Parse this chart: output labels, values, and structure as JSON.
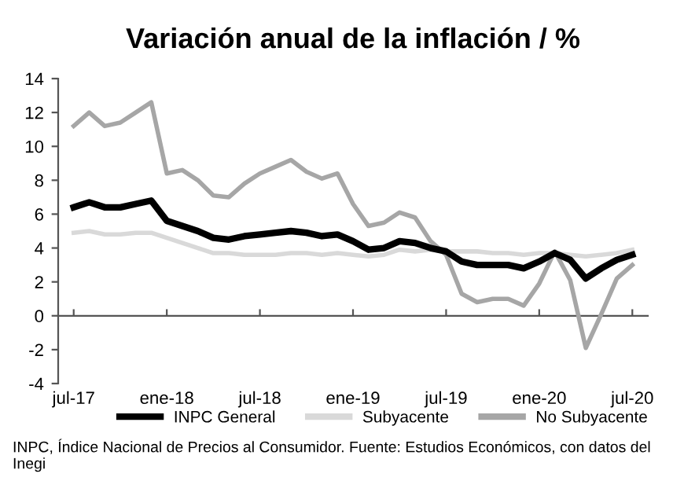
{
  "chart_data": {
    "type": "line",
    "title": "Variación anual de la inflación / %",
    "categories": [
      "jul-17",
      null,
      null,
      null,
      null,
      null,
      "ene-18",
      null,
      null,
      null,
      null,
      null,
      "jul-18",
      null,
      null,
      null,
      null,
      null,
      "ene-19",
      null,
      null,
      null,
      null,
      null,
      "jul-19",
      null,
      null,
      null,
      null,
      null,
      "ene-20",
      null,
      null,
      null,
      null,
      null,
      "jul-20"
    ],
    "series": [
      {
        "name": "INPC General",
        "color": "#000000",
        "values": [
          6.4,
          6.7,
          6.4,
          6.4,
          6.6,
          6.8,
          5.6,
          5.3,
          5.0,
          4.6,
          4.5,
          4.7,
          4.8,
          4.9,
          5.0,
          4.9,
          4.7,
          4.8,
          4.4,
          3.9,
          4.0,
          4.4,
          4.3,
          4.0,
          3.8,
          3.2,
          3.0,
          3.0,
          3.0,
          2.8,
          3.2,
          3.7,
          3.3,
          2.2,
          2.8,
          3.3,
          3.6
        ]
      },
      {
        "name": "Subyacente",
        "color": "#d9d9d9",
        "values": [
          4.9,
          5.0,
          4.8,
          4.8,
          4.9,
          4.9,
          4.6,
          4.3,
          4.0,
          3.7,
          3.7,
          3.6,
          3.6,
          3.6,
          3.7,
          3.7,
          3.6,
          3.7,
          3.6,
          3.5,
          3.6,
          3.9,
          3.8,
          3.9,
          3.8,
          3.8,
          3.8,
          3.7,
          3.7,
          3.6,
          3.7,
          3.7,
          3.6,
          3.5,
          3.6,
          3.7,
          3.9
        ]
      },
      {
        "name": "No Subyacente",
        "color": "#a6a6a6",
        "values": [
          11.2,
          12.0,
          11.2,
          11.4,
          12.0,
          12.6,
          8.4,
          8.6,
          8.0,
          7.1,
          7.0,
          7.8,
          8.4,
          8.8,
          9.2,
          8.5,
          8.1,
          8.4,
          6.6,
          5.3,
          5.5,
          6.1,
          5.8,
          4.4,
          3.6,
          1.3,
          0.8,
          1.0,
          1.0,
          0.6,
          1.9,
          3.8,
          2.1,
          -1.9,
          0.1,
          2.2,
          3.0
        ]
      }
    ],
    "ylim": [
      -4,
      14
    ],
    "yticks": [
      -4,
      -2,
      0,
      2,
      4,
      6,
      8,
      10,
      12,
      14
    ],
    "legend": "bottom",
    "marker": "none",
    "line_style": "solid",
    "annotations": [
      "INPC, Índice Nacional de Precios al Consumidor. Fuente: Estudios Económicos, con datos del Inegi"
    ]
  }
}
